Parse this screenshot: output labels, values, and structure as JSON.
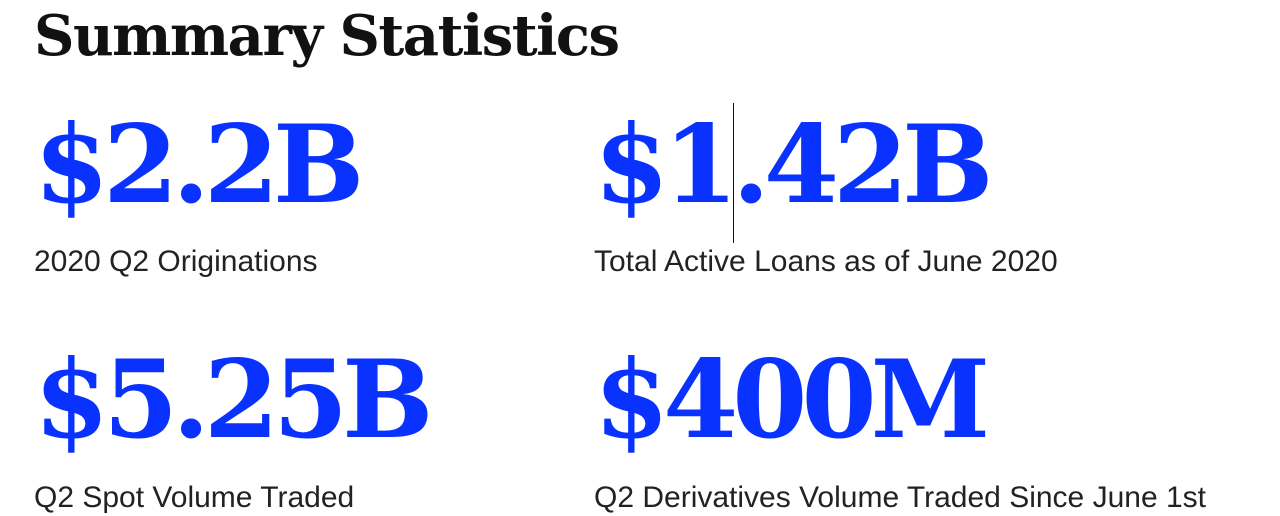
{
  "heading": "Summary Statistics",
  "accent_color": "#0a32ff",
  "stats": [
    {
      "value": "$2.2B",
      "label": "2020 Q2 Originations"
    },
    {
      "value": "$1.42B",
      "label": "Total Active Loans as of June 2020"
    },
    {
      "value": "$5.25B",
      "label": "Q2 Spot Volume Traded"
    },
    {
      "value": "$400M",
      "label": "Q2 Derivatives Volume Traded Since June 1st"
    }
  ]
}
